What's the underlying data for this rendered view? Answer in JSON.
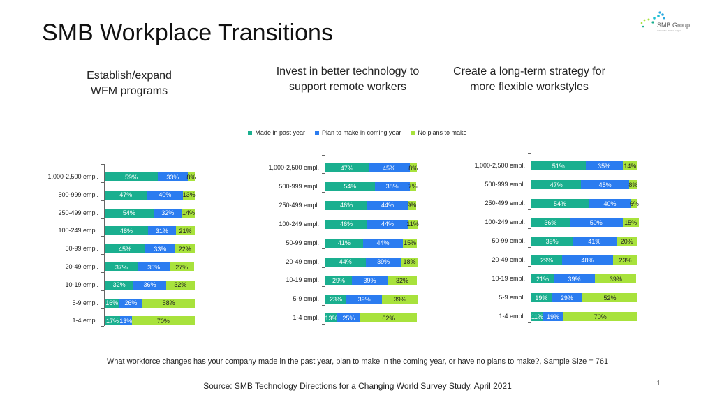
{
  "title": "SMB Workplace Transitions",
  "logo": {
    "text": "SMB Group",
    "tagline": "Actionable Market Insight"
  },
  "subtitles": [
    "Establish/expand WFM programs",
    "Invest in better technology to support remote workers",
    "Create a long-term strategy for more flexible workstyles"
  ],
  "legend": [
    {
      "label": "Made in past year",
      "color": "#1aaf8f"
    },
    {
      "label": "Plan to make in coming year",
      "color": "#2b7cf0"
    },
    {
      "label": "No plans to make",
      "color": "#a8e23c"
    }
  ],
  "question": "What workforce changes has your company made in the past year, plan to make in the coming year, or have no plans to make?, Sample Size = 761",
  "source": "Source: SMB Technology Directions for a Changing World Survey Study, April 2021",
  "page_number": "1",
  "chart_data": [
    {
      "type": "bar",
      "orientation": "horizontal",
      "stacked": true,
      "title": "Establish/expand WFM programs",
      "categories": [
        "1,000-2,500 empl.",
        "500-999 empl.",
        "250-499 empl.",
        "100-249 empl.",
        "50-99 empl.",
        "20-49 empl.",
        "10-19 empl.",
        "5-9 empl.",
        "1-4 empl."
      ],
      "series": [
        {
          "name": "Made in past year",
          "values": [
            59,
            47,
            54,
            48,
            45,
            37,
            32,
            16,
            17
          ]
        },
        {
          "name": "Plan to make in coming year",
          "values": [
            33,
            40,
            32,
            31,
            33,
            35,
            36,
            26,
            13
          ]
        },
        {
          "name": "No plans to make",
          "values": [
            8,
            13,
            14,
            21,
            22,
            27,
            32,
            58,
            70
          ]
        }
      ]
    },
    {
      "type": "bar",
      "orientation": "horizontal",
      "stacked": true,
      "title": "Invest in better technology to support remote workers",
      "categories": [
        "1,000-2,500 empl.",
        "500-999 empl.",
        "250-499 empl.",
        "100-249 empl.",
        "50-99 empl.",
        "20-49 empl.",
        "10-19 empl.",
        "5-9 empl.",
        "1-4 empl."
      ],
      "series": [
        {
          "name": "Made in past year",
          "values": [
            47,
            54,
            46,
            46,
            41,
            44,
            29,
            23,
            13
          ]
        },
        {
          "name": "Plan to make in coming year",
          "values": [
            45,
            38,
            44,
            44,
            44,
            39,
            39,
            39,
            25
          ]
        },
        {
          "name": "No plans to make",
          "values": [
            8,
            7,
            9,
            11,
            15,
            18,
            32,
            39,
            62
          ]
        }
      ]
    },
    {
      "type": "bar",
      "orientation": "horizontal",
      "stacked": true,
      "title": "Create a long-term strategy for more flexible workstyles",
      "categories": [
        "1,000-2,500 empl.",
        "500-999 empl.",
        "250-499 empl.",
        "100-249 empl.",
        "50-99 empl.",
        "20-49 empl.",
        "10-19 empl.",
        "5-9 empl.",
        "1-4 empl."
      ],
      "series": [
        {
          "name": "Made in past year",
          "values": [
            51,
            47,
            54,
            36,
            39,
            29,
            21,
            19,
            11
          ]
        },
        {
          "name": "Plan to make in coming year",
          "values": [
            35,
            45,
            40,
            50,
            41,
            48,
            39,
            29,
            19
          ]
        },
        {
          "name": "No plans to make",
          "values": [
            14,
            8,
            6,
            15,
            20,
            23,
            39,
            52,
            70
          ]
        }
      ]
    }
  ]
}
